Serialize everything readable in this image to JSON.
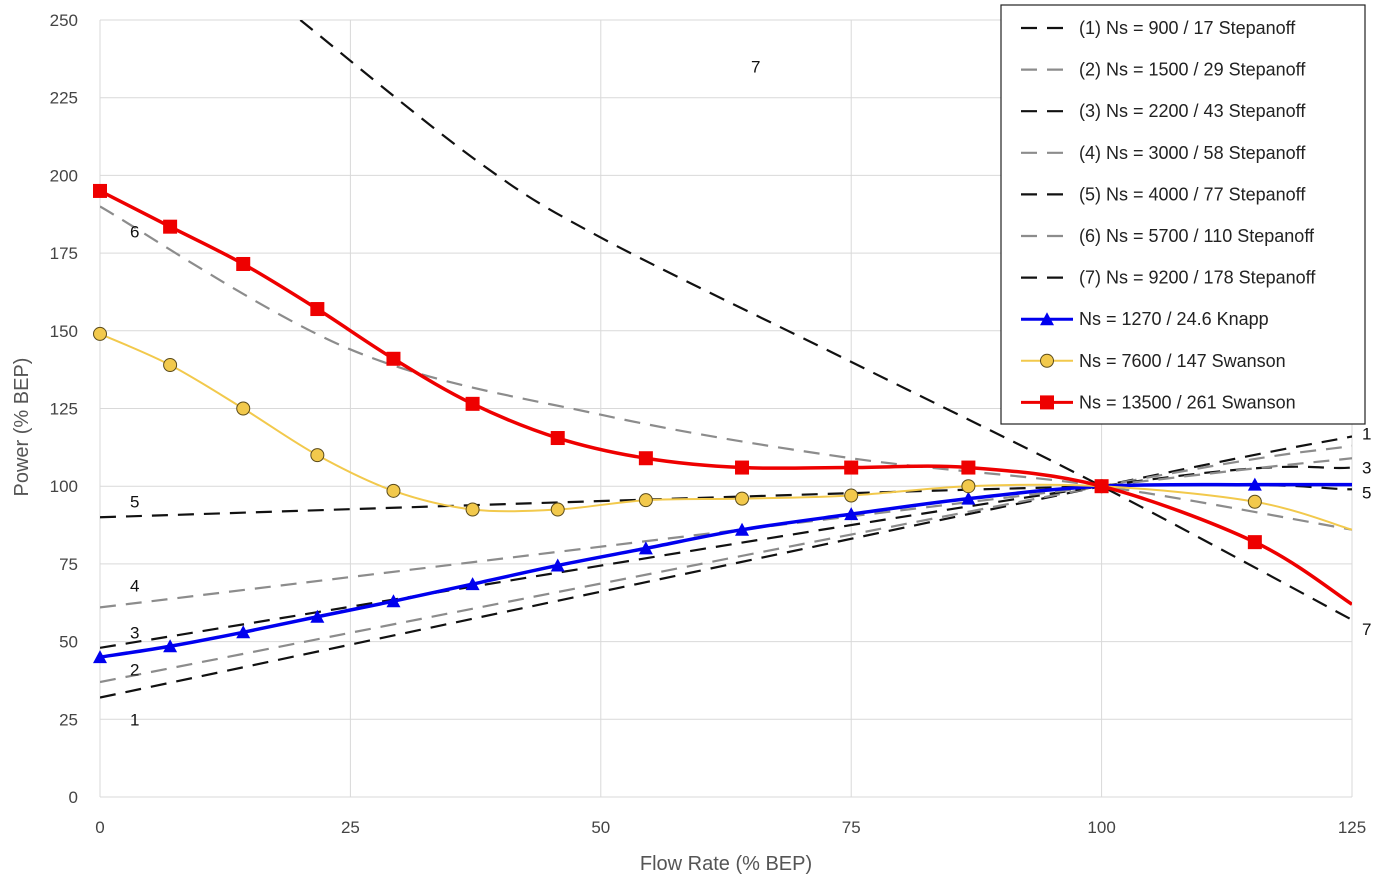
{
  "chart_data": {
    "type": "line",
    "xlabel": "Flow Rate (% BEP)",
    "ylabel": "Power (% BEP)",
    "xlim": [
      0,
      125
    ],
    "ylim": [
      0,
      250
    ],
    "xticks": [
      0,
      25,
      50,
      75,
      100,
      125
    ],
    "yticks": [
      0,
      25,
      50,
      75,
      100,
      125,
      150,
      175,
      200,
      225,
      250
    ],
    "grid": true,
    "legend_position": "top-right",
    "series": [
      {
        "name": "(1) Ns = 900 / 17 Stepanoff",
        "style": "dashed",
        "color": "#111111",
        "x": [
          0,
          100,
          125
        ],
        "y": [
          32,
          100,
          116
        ]
      },
      {
        "name": "(2) Ns = 1500 / 29 Stepanoff",
        "style": "dashed",
        "color": "#8c8c8c",
        "x": [
          0,
          100,
          125
        ],
        "y": [
          37,
          100,
          113
        ]
      },
      {
        "name": "(3) Ns = 2200 / 43 Stepanoff",
        "style": "dashed",
        "color": "#111111",
        "x": [
          0,
          100,
          125
        ],
        "y": [
          48,
          100,
          106
        ]
      },
      {
        "name": "(4) Ns = 3000 / 58 Stepanoff",
        "style": "dashed",
        "color": "#8c8c8c",
        "x": [
          0,
          100,
          125
        ],
        "y": [
          61,
          100,
          109
        ]
      },
      {
        "name": "(5) Ns = 4000 / 77 Stepanoff",
        "style": "dashed",
        "color": "#111111",
        "x": [
          0,
          100,
          125
        ],
        "y": [
          90,
          100,
          99
        ]
      },
      {
        "name": "(6) Ns = 5700 / 110 Stepanoff",
        "style": "dashed",
        "color": "#8c8c8c",
        "x": [
          0,
          25,
          50,
          75,
          100,
          125
        ],
        "y": [
          190,
          144,
          123,
          109,
          100,
          86
        ]
      },
      {
        "name": "(7) Ns = 9200 / 178 Stepanoff",
        "style": "dashed",
        "color": "#111111",
        "x": [
          20,
          37.5,
          50,
          75,
          100,
          125
        ],
        "y": [
          250,
          205,
          180,
          140,
          100,
          57
        ]
      },
      {
        "name": "Ns = 1270 / 24.6 Knapp",
        "style": "solid",
        "color": "#0000ee",
        "marker": "triangle",
        "x": [
          0,
          7,
          14.3,
          21.7,
          29.3,
          37.2,
          45.7,
          54.5,
          64.1,
          75,
          86.7,
          100,
          115.3,
          125
        ],
        "y": [
          45,
          48.5,
          53,
          58,
          63,
          68.5,
          74.5,
          80,
          86,
          91,
          96,
          100,
          100.5,
          100.5
        ]
      },
      {
        "name": "Ns = 7600 / 147 Swanson",
        "style": "solid",
        "color": "#f2c94c",
        "marker": "circle",
        "x": [
          0,
          7,
          14.3,
          21.7,
          29.3,
          37.2,
          45.7,
          54.5,
          64.1,
          75,
          86.7,
          100,
          115.3,
          125
        ],
        "y": [
          149,
          139,
          125,
          110,
          98.5,
          92.5,
          92.5,
          95.5,
          96,
          97,
          100,
          100,
          95,
          86
        ]
      },
      {
        "name": "Ns = 13500 / 261 Swanson",
        "style": "solid",
        "color": "#ee0000",
        "marker": "square",
        "x": [
          0,
          7,
          14.3,
          21.7,
          29.3,
          37.2,
          45.7,
          54.5,
          64.1,
          75,
          86.7,
          100,
          115.3,
          125
        ],
        "y": [
          195,
          183.5,
          171.5,
          157,
          141,
          126.5,
          115.5,
          109,
          106,
          106,
          106,
          100,
          82,
          62
        ]
      }
    ],
    "annotations": [
      {
        "text": "7",
        "x": 65,
        "y": 235
      },
      {
        "text": "6",
        "x": 3,
        "y": 182
      },
      {
        "text": "5",
        "x": 3,
        "y": 95
      },
      {
        "text": "4",
        "x": 3,
        "y": 68
      },
      {
        "text": "3",
        "x": 3,
        "y": 53
      },
      {
        "text": "2",
        "x": 3,
        "y": 41
      },
      {
        "text": "1",
        "x": 3,
        "y": 25
      },
      {
        "text": "1",
        "x": 126,
        "y": 117
      },
      {
        "text": "3",
        "x": 126,
        "y": 106
      },
      {
        "text": "5",
        "x": 126,
        "y": 98
      },
      {
        "text": "7",
        "x": 126,
        "y": 54
      }
    ]
  },
  "colors": {
    "grid": "#d9d9d9",
    "legend_border": "#222222"
  }
}
